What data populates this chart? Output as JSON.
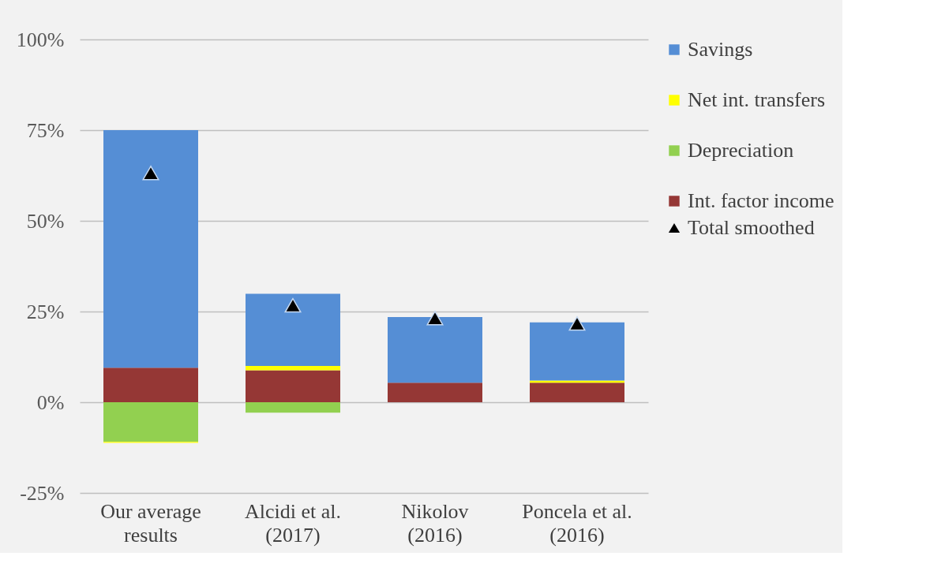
{
  "chart_data": {
    "type": "bar",
    "stacked": true,
    "categories": [
      "Our average results",
      "Alcidi et al. (2017)",
      "Nikolov (2016)",
      "Poncela et al. (2016)"
    ],
    "series": [
      {
        "name": "Int. factor income",
        "color": "#953735",
        "values": [
          9.5,
          8.8,
          5.4,
          5.4
        ]
      },
      {
        "name": "Depreciation",
        "color": "#92d050",
        "values": [
          -10.9,
          -2.9,
          0,
          0
        ]
      },
      {
        "name": "Net int. transfers",
        "color": "#ffff00",
        "values": [
          -0.3,
          1.2,
          0,
          0.6
        ]
      },
      {
        "name": "Savings",
        "color": "#558ed5",
        "values": [
          65.5,
          19.9,
          18.1,
          16.0
        ]
      },
      {
        "name": "Total smoothed",
        "type": "scatter",
        "marker": "triangle",
        "color": "#000000",
        "x": [
          "Our average results",
          "Alcidi et al. (2017)",
          "Nikolov (2016)",
          "Poncela et al. (2016)"
        ],
        "values": [
          63.2,
          26.7,
          23.2,
          21.7
        ]
      }
    ],
    "ylim": [
      -25,
      100
    ],
    "yticks": [
      {
        "value": -25,
        "label": "-25%"
      },
      {
        "value": 0,
        "label": "0%"
      },
      {
        "value": 25,
        "label": "25%"
      },
      {
        "value": 50,
        "label": "50%"
      },
      {
        "value": 75,
        "label": "75%"
      },
      {
        "value": 100,
        "label": "100%"
      }
    ],
    "grid": "y",
    "legend": "right"
  }
}
